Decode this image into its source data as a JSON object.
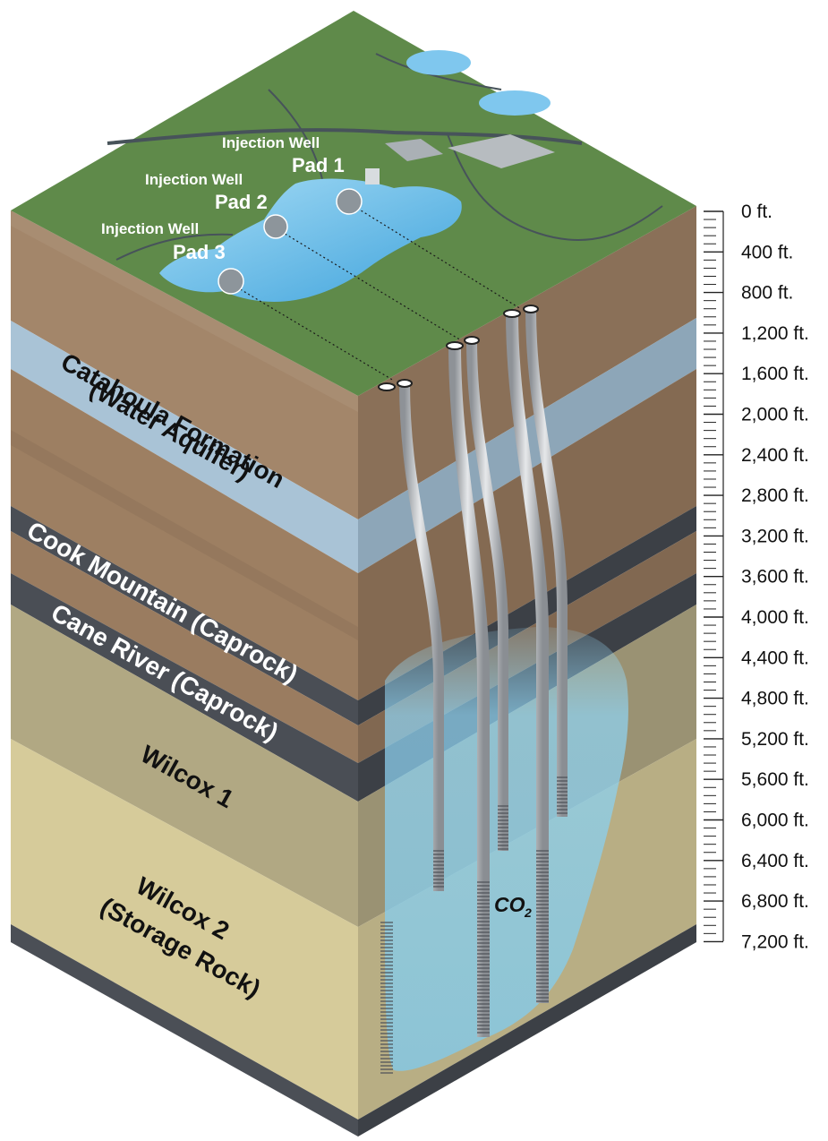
{
  "pads": [
    {
      "caption": "Injection Well",
      "name": "Pad 1"
    },
    {
      "caption": "Injection Well",
      "name": "Pad 2"
    },
    {
      "caption": "Injection Well",
      "name": "Pad 3"
    }
  ],
  "layers": {
    "catahoula_line1": "Catahoula Formation",
    "catahoula_line2": "(Water Aquifer)",
    "cook_mountain": "Cook Mountain (Caprock)",
    "cane_river": "Cane River (Caprock)",
    "wilcox1": "Wilcox 1",
    "wilcox2_line1": "Wilcox 2",
    "wilcox2_line2": "(Storage Rock)"
  },
  "plume_label": "CO",
  "plume_subscript": "2",
  "depth_scale": [
    "0 ft.",
    "400 ft.",
    "800 ft.",
    "1,200 ft.",
    "1,600 ft.",
    "2,000 ft.",
    "2,400 ft.",
    "2,800 ft.",
    "3,200 ft.",
    "3,600 ft.",
    "4,000 ft.",
    "4,400 ft.",
    "4,800 ft.",
    "5,200 ft.",
    "5,600 ft.",
    "6,000 ft.",
    "6,400 ft.",
    "6,800 ft.",
    "7,200 ft."
  ],
  "colors": {
    "surface": "#5f8a4a",
    "water": "#5fb4e6",
    "soil": "#a3866a",
    "aquifer": "#a9c3d6",
    "caprock": "#4a4e55",
    "wilcox1": "#b1a883",
    "wilcox2": "#d6cb9a",
    "plume": "#8fd3f2",
    "casing": "#c9ccd0"
  }
}
